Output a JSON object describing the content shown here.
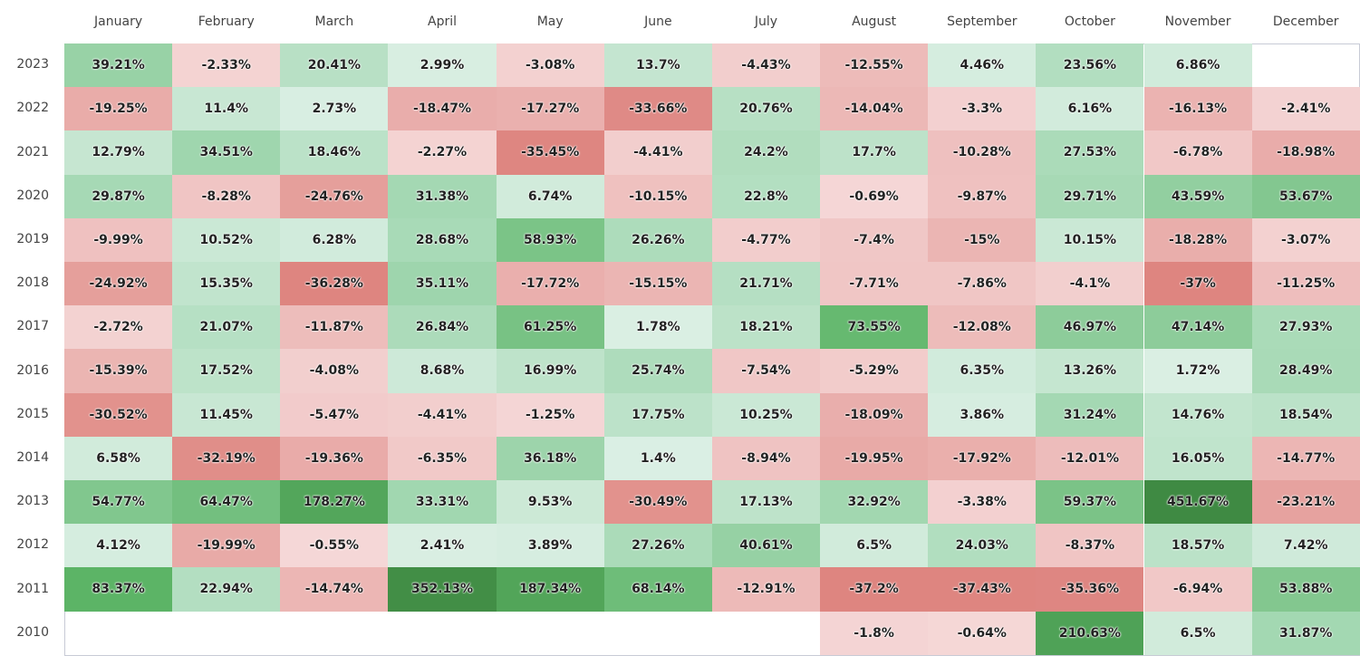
{
  "chart_data": {
    "type": "heatmap",
    "title": "",
    "xlabel": "",
    "ylabel": "",
    "unit": "%",
    "months": [
      "January",
      "February",
      "March",
      "April",
      "May",
      "June",
      "July",
      "August",
      "September",
      "October",
      "November",
      "December"
    ],
    "years": [
      "2023",
      "2022",
      "2021",
      "2020",
      "2019",
      "2018",
      "2017",
      "2016",
      "2015",
      "2014",
      "2013",
      "2012",
      "2011",
      "2010"
    ],
    "values": [
      [
        39.21,
        -2.33,
        20.41,
        2.99,
        -3.08,
        13.7,
        -4.43,
        -12.55,
        4.46,
        23.56,
        6.86,
        null
      ],
      [
        -19.25,
        11.4,
        2.73,
        -18.47,
        -17.27,
        -33.66,
        20.76,
        -14.04,
        -3.3,
        6.16,
        -16.13,
        -2.41
      ],
      [
        12.79,
        34.51,
        18.46,
        -2.27,
        -35.45,
        -4.41,
        24.2,
        17.7,
        -10.28,
        27.53,
        -6.78,
        -18.98
      ],
      [
        29.87,
        -8.28,
        -24.76,
        31.38,
        6.74,
        -10.15,
        22.8,
        -0.69,
        -9.87,
        29.71,
        43.59,
        53.67
      ],
      [
        -9.99,
        10.52,
        6.28,
        28.68,
        58.93,
        26.26,
        -4.77,
        -7.4,
        -15,
        10.15,
        -18.28,
        -3.07
      ],
      [
        -24.92,
        15.35,
        -36.28,
        35.11,
        -17.72,
        -15.15,
        21.71,
        -7.71,
        -7.86,
        -4.1,
        -37,
        -11.25
      ],
      [
        -2.72,
        21.07,
        -11.87,
        26.84,
        61.25,
        1.78,
        18.21,
        73.55,
        -12.08,
        46.97,
        47.14,
        27.93
      ],
      [
        -15.39,
        17.52,
        -4.08,
        8.68,
        16.99,
        25.74,
        -7.54,
        -5.29,
        6.35,
        13.26,
        1.72,
        28.49
      ],
      [
        -30.52,
        11.45,
        -5.47,
        -4.41,
        -1.25,
        17.75,
        10.25,
        -18.09,
        3.86,
        31.24,
        14.76,
        18.54
      ],
      [
        6.58,
        -32.19,
        -19.36,
        -6.35,
        36.18,
        1.4,
        -8.94,
        -19.95,
        -17.92,
        -12.01,
        16.05,
        -14.77
      ],
      [
        54.77,
        64.47,
        178.27,
        33.31,
        9.53,
        -30.49,
        17.13,
        32.92,
        -3.38,
        59.37,
        451.67,
        -23.21
      ],
      [
        4.12,
        -19.99,
        -0.55,
        2.41,
        3.89,
        27.26,
        40.61,
        6.5,
        24.03,
        -8.37,
        18.57,
        7.42
      ],
      [
        83.37,
        22.94,
        -14.74,
        352.13,
        187.34,
        68.14,
        -12.91,
        -37.2,
        -37.43,
        -35.36,
        -6.94,
        53.88
      ],
      [
        null,
        null,
        null,
        null,
        null,
        null,
        null,
        -1.8,
        -0.64,
        210.63,
        6.5,
        31.87
      ]
    ],
    "colors": {
      "positive_light": "#ddf0e6",
      "positive_mid": "#a6d9b5",
      "positive_strong": "#5cb466",
      "positive_max": "#3f8a43",
      "negative_light": "#f5d8d8",
      "negative_strong": "#de8580"
    },
    "grid": true,
    "legend": "none"
  }
}
